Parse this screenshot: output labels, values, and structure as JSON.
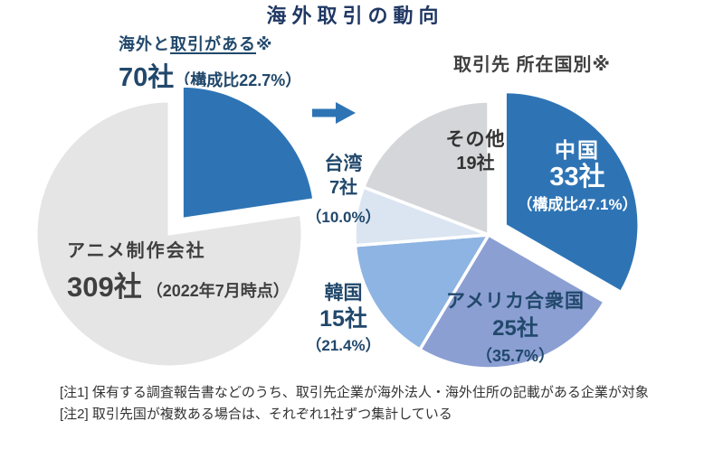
{
  "title": "海外取引の動向",
  "palette": {
    "dark_blue": "#2E74B5",
    "periwinkle": "#8B9FD3",
    "light_steel_blue": "#8DB4E2",
    "pale_blue": "#DBE5F1",
    "gray_left_pie": "#E5E5E6",
    "gray_other": "#D5D6D9",
    "navy_text": "#21486B",
    "dark_text": "#3F3F3F",
    "arrow_blue": "#2E74B5"
  },
  "left_chart": {
    "callout": {
      "prefix": "海外と",
      "underlined": "取引がある",
      "asterisk": "※",
      "count": "70社",
      "share": "（構成比22.7%）"
    },
    "inner_label": {
      "name": "アニメ制作会社",
      "count": "309社",
      "asof": "（2022年7月時点）"
    }
  },
  "right_chart": {
    "heading": "取引先 所在国別※",
    "labels": {
      "china": {
        "name": "中国",
        "count": "33社",
        "share": "（構成比47.1%）"
      },
      "usa": {
        "name": "アメリカ合衆国",
        "count": "25社",
        "share": "（35.7%）"
      },
      "korea": {
        "name": "韓国",
        "count": "15社",
        "share": "（21.4%）"
      },
      "taiwan": {
        "name": "台湾",
        "count": "7社",
        "share": "（10.0%）"
      },
      "other": {
        "name": "その他",
        "count": "19社"
      }
    }
  },
  "notes": [
    "[注1] 保有する調査報告書などのうち、取引先企業が海外法人・海外住所の記載がある企業が対象",
    "[注2] 取引先国が複数ある場合は、それぞれ1社ずつ集計している"
  ],
  "chart_data": [
    {
      "type": "pie",
      "title": "アニメ制作会社 309社（2022年7月時点）",
      "total_companies": 309,
      "as_of": "2022年7月時点",
      "start_angle_deg": 0,
      "direction": "clockwise",
      "slices": [
        {
          "label": "海外と取引がある",
          "value": 70,
          "share_pct": 22.7,
          "color": "#2E74B5",
          "exploded": true
        },
        {
          "label": "",
          "unlabeled_remainder": true,
          "value": 239,
          "color": "#E5E5E6",
          "exploded": false
        }
      ]
    },
    {
      "type": "pie",
      "title": "取引先 所在国別",
      "unit": "社",
      "share_base_companies": 70,
      "start_angle_deg": 0,
      "direction": "clockwise",
      "slices": [
        {
          "label": "中国",
          "value": 33,
          "share_pct": 47.1,
          "color": "#2E74B5",
          "exploded": true
        },
        {
          "label": "アメリカ合衆国",
          "value": 25,
          "share_pct": 35.7,
          "color": "#8B9FD3",
          "exploded": false
        },
        {
          "label": "韓国",
          "value": 15,
          "share_pct": 21.4,
          "color": "#8DB4E2",
          "exploded": false
        },
        {
          "label": "台湾",
          "value": 7,
          "share_pct": 10.0,
          "color": "#DBE5F1",
          "exploded": false
        },
        {
          "label": "その他",
          "value": 19,
          "color": "#D5D6D9",
          "exploded": false
        }
      ]
    }
  ]
}
